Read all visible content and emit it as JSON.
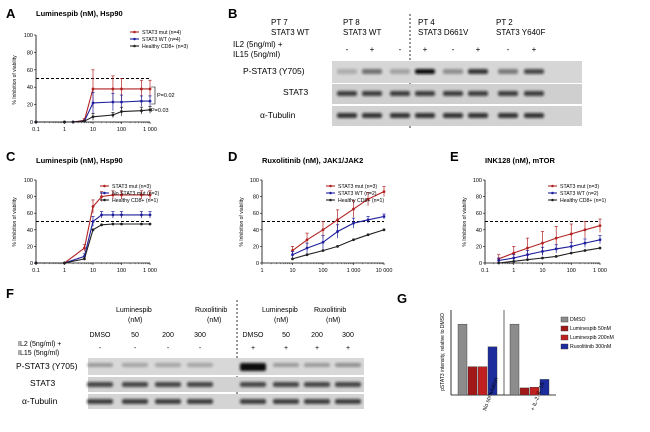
{
  "colors": {
    "stat3_mut": "#b22222",
    "stat3_wt": "#1f1f9e",
    "healthy": "#222222",
    "bar_dmso": "#8c8c8c",
    "bar_lum50": "#a01818",
    "bar_lum200": "#c02020",
    "bar_rux300": "#1c2c9c"
  },
  "panels": {
    "A": "A",
    "B": "B",
    "C": "C",
    "D": "D",
    "E": "E",
    "F": "F",
    "G": "G"
  },
  "y_axis_label": "% Inhibition of viability",
  "charts": {
    "A": {
      "type": "line",
      "title": "Luminespib (nM), Hsp90",
      "x_ticks": [
        "0.1",
        "1",
        "10",
        "100",
        "1 000"
      ],
      "y_ticks": [
        "0",
        "20",
        "40",
        "60",
        "80",
        "100"
      ],
      "x_log_range": [
        -1,
        3
      ],
      "ylim": [
        0,
        100
      ],
      "ref_line": 50,
      "x_values": [
        0.1,
        1,
        2,
        5,
        10,
        50,
        100,
        500,
        1000
      ],
      "series": [
        {
          "name": "STAT3 mut (n=4)",
          "color": "#b22222",
          "values": [
            0,
            0,
            0,
            2,
            38,
            38,
            38,
            38,
            38
          ],
          "err": [
            0,
            0,
            0,
            2,
            22,
            15,
            12,
            10,
            10
          ]
        },
        {
          "name": "STAT3 WT (n=4)",
          "color": "#1f1f9e",
          "values": [
            0,
            0,
            0,
            1,
            22,
            23,
            23,
            24,
            24
          ],
          "err": [
            0,
            0,
            0,
            1,
            12,
            10,
            8,
            6,
            6
          ]
        },
        {
          "name": "Healthy CD8+ (n=3)",
          "color": "#222222",
          "values": [
            0,
            0,
            0,
            1,
            6,
            8,
            12,
            13,
            14
          ],
          "err": [
            0,
            0,
            0,
            0,
            4,
            3,
            5,
            4,
            4
          ]
        }
      ],
      "annotations": [
        "P=0.02",
        "P=0.03"
      ]
    },
    "C": {
      "type": "line",
      "title": "Luminespib (nM), Hsp90",
      "x_ticks": [
        "0.1",
        "1",
        "10",
        "100",
        "1 000"
      ],
      "y_ticks": [
        "0",
        "20",
        "40",
        "60",
        "80",
        "100"
      ],
      "x_log_range": [
        -1,
        3
      ],
      "ylim": [
        0,
        100
      ],
      "ref_line": 50,
      "x_values": [
        0.1,
        1,
        5,
        10,
        20,
        50,
        100,
        500,
        1000
      ],
      "series": [
        {
          "name": "STAT3 mut (n=3)",
          "color": "#b22222",
          "values": [
            0,
            0,
            18,
            68,
            80,
            82,
            82,
            82,
            82
          ],
          "err": [
            0,
            0,
            4,
            8,
            6,
            5,
            5,
            5,
            5
          ]
        },
        {
          "name": "No STAT3 mut (n=2)",
          "color": "#1f1f9e",
          "values": [
            0,
            0,
            8,
            50,
            58,
            58,
            58,
            58,
            58
          ],
          "err": [
            0,
            0,
            3,
            6,
            4,
            4,
            4,
            4,
            4
          ]
        },
        {
          "name": "Healthy CD8+ (n=1)",
          "color": "#222222",
          "values": [
            0,
            0,
            5,
            40,
            46,
            47,
            47,
            47,
            47
          ],
          "err": [
            0,
            0,
            0,
            0,
            0,
            0,
            0,
            0,
            0
          ]
        }
      ]
    },
    "D": {
      "type": "line",
      "title": "Ruxolitinib (nM), JAK1/JAK2",
      "x_ticks": [
        "1",
        "10",
        "100",
        "1 000",
        "10 000"
      ],
      "y_ticks": [
        "0",
        "20",
        "40",
        "60",
        "80",
        "100"
      ],
      "x_log_range": [
        0,
        4
      ],
      "ylim": [
        0,
        100
      ],
      "ref_line": 50,
      "x_values": [
        10,
        30,
        100,
        300,
        1000,
        3000,
        10000
      ],
      "series": [
        {
          "name": "STAT3 mut (n=3)",
          "color": "#b22222",
          "values": [
            15,
            28,
            40,
            52,
            65,
            77,
            86
          ],
          "err": [
            5,
            8,
            10,
            12,
            10,
            8,
            6
          ]
        },
        {
          "name": "STAT3 WT (n=2)",
          "color": "#1f1f9e",
          "values": [
            10,
            18,
            25,
            38,
            48,
            52,
            56
          ],
          "err": [
            4,
            6,
            8,
            8,
            6,
            4,
            3
          ]
        },
        {
          "name": "Healthy CD8+ (n=1)",
          "color": "#222222",
          "values": [
            5,
            10,
            15,
            20,
            28,
            34,
            40
          ],
          "err": [
            0,
            0,
            0,
            0,
            0,
            0,
            0
          ]
        }
      ]
    },
    "E": {
      "type": "line",
      "title": "INK128 (nM), mTOR",
      "x_ticks": [
        "0.1",
        "1",
        "10",
        "100",
        "1 000"
      ],
      "y_ticks": [
        "0",
        "20",
        "40",
        "60",
        "80",
        "100"
      ],
      "x_log_range": [
        -1,
        3
      ],
      "ylim": [
        0,
        100
      ],
      "ref_line": 50,
      "x_values": [
        0.3,
        1,
        3,
        10,
        30,
        100,
        300,
        1000
      ],
      "series": [
        {
          "name": "STAT3 mut (n=3)",
          "color": "#b22222",
          "values": [
            5,
            12,
            18,
            24,
            30,
            35,
            40,
            45
          ],
          "err": [
            5,
            8,
            12,
            14,
            14,
            12,
            10,
            8
          ]
        },
        {
          "name": "STAT3 WT (n=2)",
          "color": "#1f1f9e",
          "values": [
            3,
            6,
            10,
            14,
            17,
            20,
            24,
            28
          ],
          "err": [
            3,
            4,
            5,
            5,
            5,
            5,
            5,
            5
          ]
        },
        {
          "name": "Healthy CD8+ (n=1)",
          "color": "#222222",
          "values": [
            0,
            2,
            4,
            6,
            8,
            12,
            15,
            18
          ],
          "err": [
            0,
            0,
            0,
            0,
            0,
            0,
            0,
            0
          ]
        }
      ]
    },
    "G": {
      "type": "bar",
      "ylabel": "pSTAT3 intensity, relative to DMSO",
      "categories": [
        "No stimulation",
        "+ IL-2, IL-15"
      ],
      "ylim": [
        0,
        1.2
      ],
      "series": [
        {
          "name": "DMSO",
          "color": "#8c8c8c",
          "values": [
            1.0,
            1.0
          ]
        },
        {
          "name": "Luminespib 50nM",
          "color": "#a01818",
          "values": [
            0.4,
            0.1
          ]
        },
        {
          "name": "Luminespib 200nM",
          "color": "#c02020",
          "values": [
            0.4,
            0.11
          ]
        },
        {
          "name": "Ruxolitinib 300nM",
          "color": "#1c2c9c",
          "values": [
            0.68,
            0.22
          ]
        }
      ]
    }
  },
  "blotB": {
    "patients": [
      {
        "name": "PT 7",
        "status": "STAT3 WT"
      },
      {
        "name": "PT 8",
        "status": "STAT3 WT"
      },
      {
        "name": "PT 4",
        "status": "STAT3 D661V"
      },
      {
        "name": "PT 2",
        "status": "STAT3 Y640F"
      }
    ],
    "treatment_line1": "IL2 (5ng/ml) +",
    "treatment_line2": "IL15 (5ng/ml)",
    "signs": [
      "-",
      "+",
      "-",
      "+",
      "-",
      "+",
      "-",
      "+"
    ],
    "rows": [
      "P-STAT3 (Y705)",
      "STAT3",
      "α-Tubulin"
    ]
  },
  "blotF": {
    "drugs": [
      {
        "line1": "Luminespib",
        "line2": "(nM)"
      },
      {
        "line1": "Ruxolitinib",
        "line2": "(nM)"
      },
      {
        "line1": "Luminespib",
        "line2": "(nM)"
      },
      {
        "line1": "Ruxolitinib",
        "line2": "(nM)"
      }
    ],
    "doses": [
      "DMSO",
      "50",
      "200",
      "300",
      "DMSO",
      "50",
      "200",
      "300"
    ],
    "treatment_line1": "IL2 (5ng/ml) +",
    "treatment_line2": "IL15 (5ng/ml)",
    "signs": [
      "-",
      "-",
      "-",
      "-",
      "+",
      "+",
      "+",
      "+"
    ],
    "rows": [
      "P-STAT3 (Y705)",
      "STAT3",
      "α-Tubulin"
    ]
  }
}
